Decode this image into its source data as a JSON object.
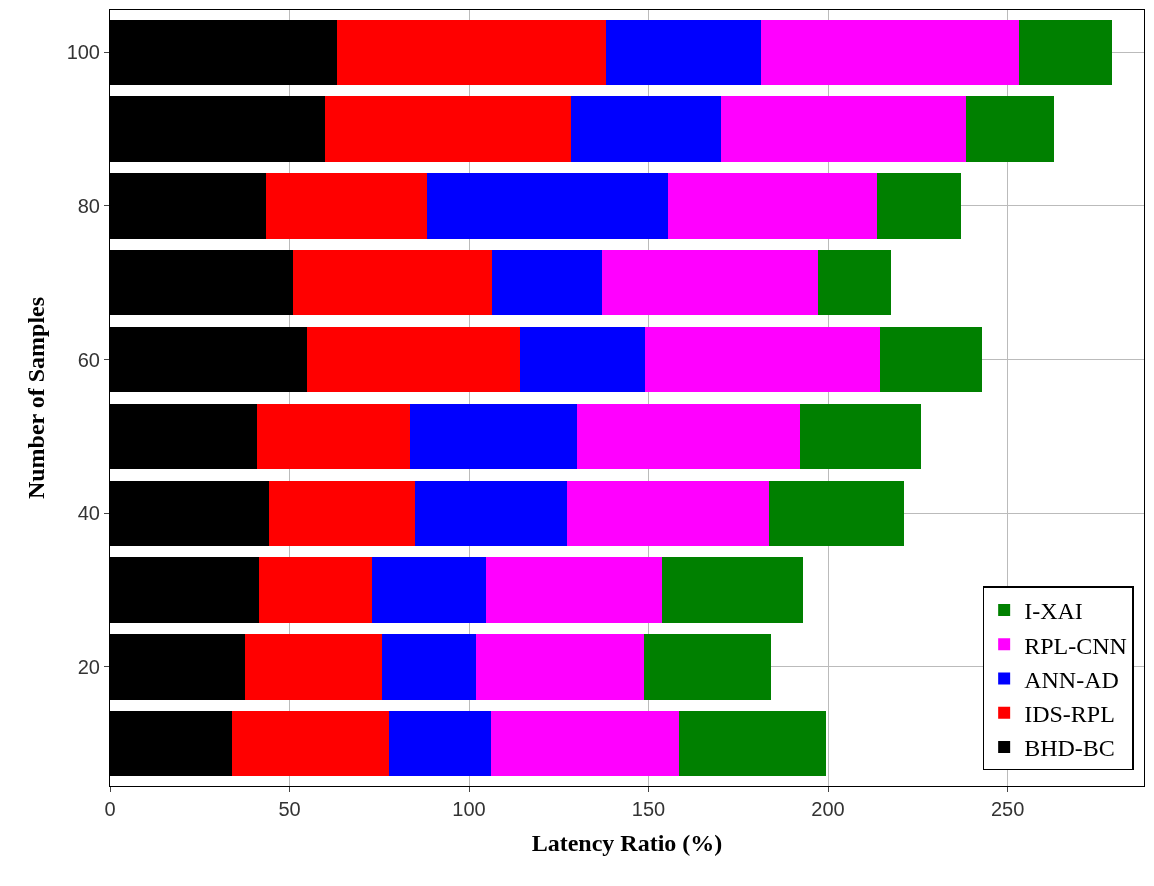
{
  "chart_data": {
    "type": "bar",
    "orientation": "horizontal",
    "stacked": true,
    "xlabel": "Latency Ratio (%)",
    "ylabel": "Number of Samples",
    "categories": [
      "100",
      null,
      "80",
      null,
      "60",
      null,
      "40",
      null,
      "20",
      null
    ],
    "series": [
      {
        "name": "BHD-BC",
        "color": "#000000",
        "values": [
          63.3,
          59.9,
          43.5,
          51.1,
          54.8,
          41.0,
          44.4,
          41.5,
          37.6,
          33.9
        ]
      },
      {
        "name": "IDS-RPL",
        "color": "#ff0000",
        "values": [
          74.8,
          68.6,
          44.9,
          55.4,
          59.3,
          42.6,
          40.6,
          31.4,
          38.1,
          43.8
        ]
      },
      {
        "name": "ANN-AD",
        "color": "#0000ff",
        "values": [
          43.2,
          41.6,
          67.0,
          30.5,
          34.8,
          46.6,
          42.4,
          31.9,
          26.3,
          28.5
        ]
      },
      {
        "name": "RPL-CNN",
        "color": "#ff00ff",
        "values": [
          71.8,
          68.3,
          58.2,
          60.2,
          65.5,
          61.9,
          56.2,
          48.9,
          46.6,
          52.3
        ]
      },
      {
        "name": "I-XAI",
        "color": "#008000",
        "values": [
          26.0,
          24.6,
          23.4,
          20.3,
          28.5,
          33.9,
          37.6,
          39.2,
          35.6,
          40.9
        ]
      }
    ],
    "xlim": [
      0,
      288
    ],
    "xticks": [
      0,
      50,
      100,
      150,
      200,
      250
    ],
    "grid": true,
    "legend": "bottom right"
  }
}
